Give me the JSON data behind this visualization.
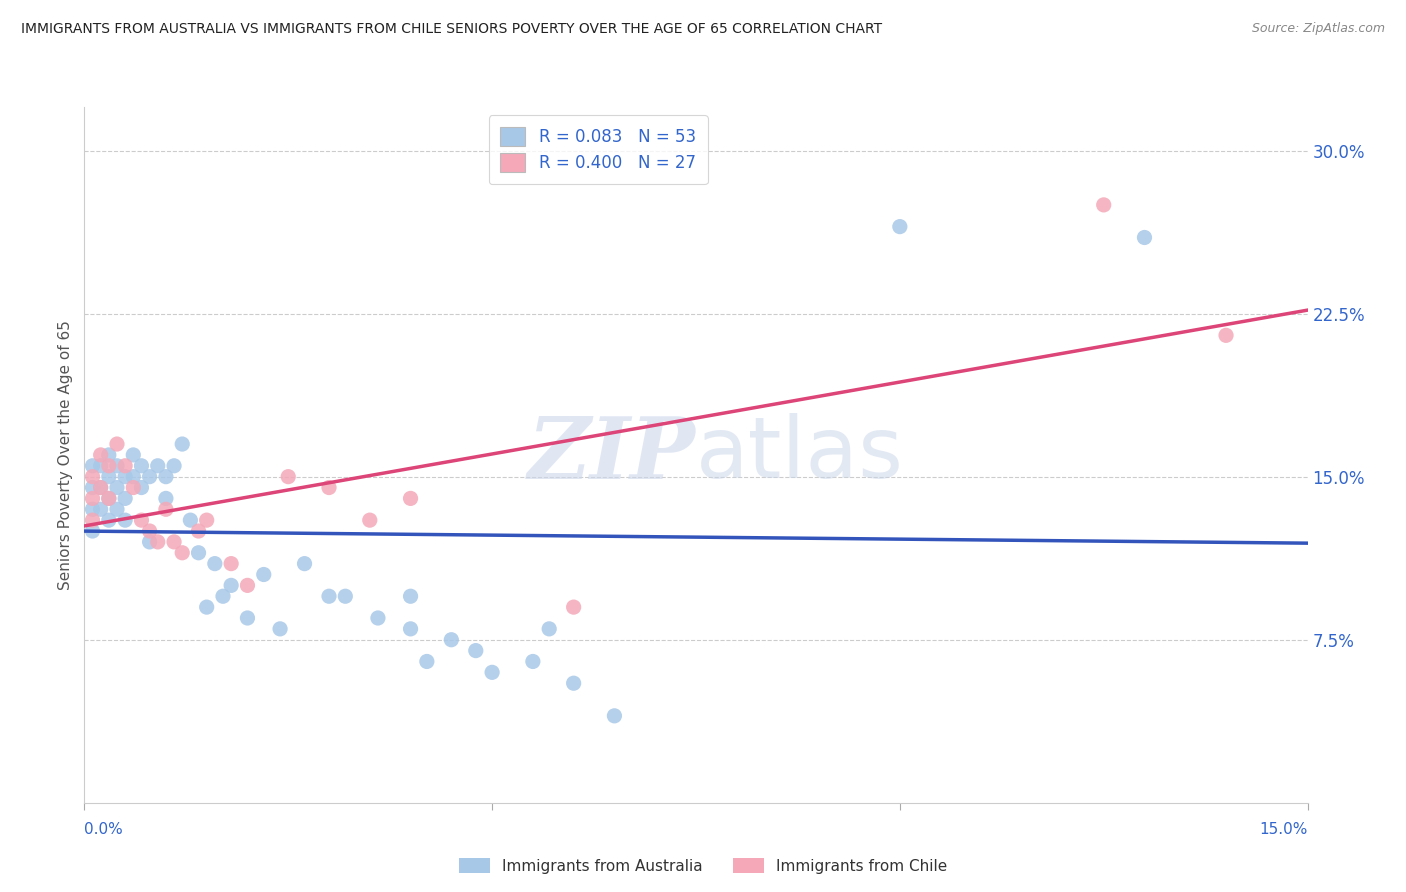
{
  "title": "IMMIGRANTS FROM AUSTRALIA VS IMMIGRANTS FROM CHILE SENIORS POVERTY OVER THE AGE OF 65 CORRELATION CHART",
  "source": "Source: ZipAtlas.com",
  "ylabel": "Seniors Poverty Over the Age of 65",
  "xlabel_australia": "Immigrants from Australia",
  "xlabel_chile": "Immigrants from Chile",
  "xmin": 0.0,
  "xmax": 0.15,
  "ymin": 0.0,
  "ymax": 0.32,
  "yticks": [
    0.075,
    0.15,
    0.225,
    0.3
  ],
  "ytick_labels": [
    "7.5%",
    "15.0%",
    "22.5%",
    "30.0%"
  ],
  "australia_color": "#a8c8e8",
  "chile_color": "#f4a8b8",
  "australia_line_color": "#3355bb",
  "chile_line_color": "#dd4477",
  "R_australia": 0.083,
  "N_australia": 53,
  "R_chile": 0.4,
  "N_chile": 27,
  "australia_points": [
    [
      0.001,
      0.155
    ],
    [
      0.001,
      0.145
    ],
    [
      0.001,
      0.135
    ],
    [
      0.001,
      0.125
    ],
    [
      0.002,
      0.155
    ],
    [
      0.002,
      0.145
    ],
    [
      0.002,
      0.135
    ],
    [
      0.003,
      0.16
    ],
    [
      0.003,
      0.15
    ],
    [
      0.003,
      0.14
    ],
    [
      0.003,
      0.13
    ],
    [
      0.004,
      0.155
    ],
    [
      0.004,
      0.145
    ],
    [
      0.004,
      0.135
    ],
    [
      0.005,
      0.15
    ],
    [
      0.005,
      0.14
    ],
    [
      0.005,
      0.13
    ],
    [
      0.006,
      0.16
    ],
    [
      0.006,
      0.15
    ],
    [
      0.007,
      0.155
    ],
    [
      0.007,
      0.145
    ],
    [
      0.008,
      0.15
    ],
    [
      0.008,
      0.12
    ],
    [
      0.009,
      0.155
    ],
    [
      0.01,
      0.15
    ],
    [
      0.01,
      0.14
    ],
    [
      0.011,
      0.155
    ],
    [
      0.012,
      0.165
    ],
    [
      0.013,
      0.13
    ],
    [
      0.014,
      0.115
    ],
    [
      0.015,
      0.09
    ],
    [
      0.016,
      0.11
    ],
    [
      0.017,
      0.095
    ],
    [
      0.018,
      0.1
    ],
    [
      0.02,
      0.085
    ],
    [
      0.022,
      0.105
    ],
    [
      0.024,
      0.08
    ],
    [
      0.027,
      0.11
    ],
    [
      0.03,
      0.095
    ],
    [
      0.032,
      0.095
    ],
    [
      0.036,
      0.085
    ],
    [
      0.04,
      0.095
    ],
    [
      0.04,
      0.08
    ],
    [
      0.042,
      0.065
    ],
    [
      0.045,
      0.075
    ],
    [
      0.048,
      0.07
    ],
    [
      0.05,
      0.06
    ],
    [
      0.055,
      0.065
    ],
    [
      0.057,
      0.08
    ],
    [
      0.06,
      0.055
    ],
    [
      0.065,
      0.04
    ],
    [
      0.1,
      0.265
    ],
    [
      0.13,
      0.26
    ]
  ],
  "chile_points": [
    [
      0.001,
      0.15
    ],
    [
      0.001,
      0.14
    ],
    [
      0.001,
      0.13
    ],
    [
      0.002,
      0.16
    ],
    [
      0.002,
      0.145
    ],
    [
      0.003,
      0.155
    ],
    [
      0.003,
      0.14
    ],
    [
      0.004,
      0.165
    ],
    [
      0.005,
      0.155
    ],
    [
      0.006,
      0.145
    ],
    [
      0.007,
      0.13
    ],
    [
      0.008,
      0.125
    ],
    [
      0.009,
      0.12
    ],
    [
      0.01,
      0.135
    ],
    [
      0.011,
      0.12
    ],
    [
      0.012,
      0.115
    ],
    [
      0.014,
      0.125
    ],
    [
      0.015,
      0.13
    ],
    [
      0.018,
      0.11
    ],
    [
      0.02,
      0.1
    ],
    [
      0.025,
      0.15
    ],
    [
      0.03,
      0.145
    ],
    [
      0.035,
      0.13
    ],
    [
      0.04,
      0.14
    ],
    [
      0.06,
      0.09
    ],
    [
      0.125,
      0.275
    ],
    [
      0.14,
      0.215
    ]
  ],
  "background_color": "#ffffff",
  "grid_color": "#cccccc",
  "title_color": "#333333",
  "tick_label_color": "#3366cc"
}
